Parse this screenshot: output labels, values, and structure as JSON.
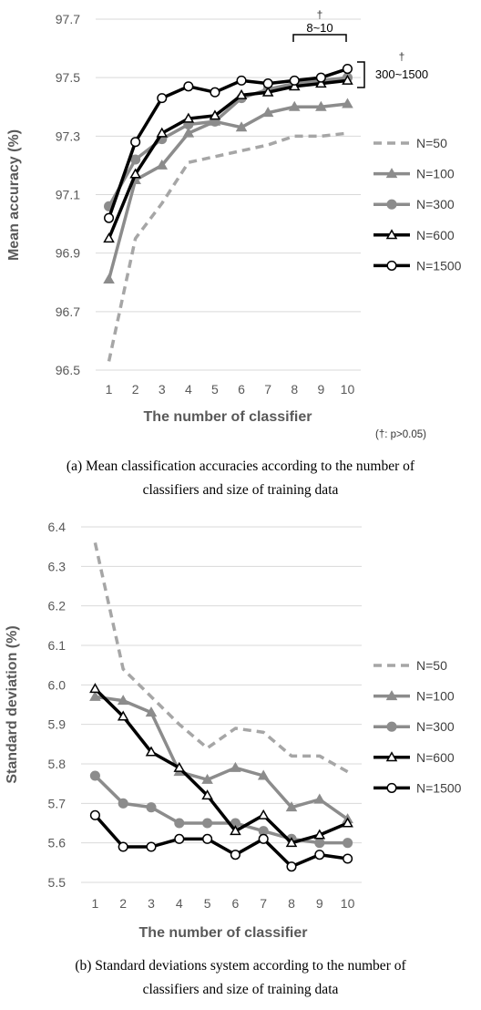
{
  "colors": {
    "N=50": "#a6a6a6",
    "N=100": "#8c8c8c",
    "N=300": "#8c8c8c",
    "N=600": "#000000",
    "N=1500": "#000000",
    "grid": "#d9d9d9",
    "text": "#595959"
  },
  "chart_data": [
    {
      "type": "line",
      "title": "",
      "xlabel": "The number of classifier",
      "ylabel": "Mean accuracy (%)",
      "x": [
        1,
        2,
        3,
        4,
        5,
        6,
        7,
        8,
        9,
        10
      ],
      "ylim": [
        96.5,
        97.7
      ],
      "yticks": [
        "96.5",
        "96.7",
        "96.9",
        "97.1",
        "97.3",
        "97.5",
        "97.7"
      ],
      "grid": "horizontal",
      "legend": "right",
      "series": [
        {
          "name": "N=50",
          "marker": "none",
          "dash": true,
          "values": [
            96.53,
            96.95,
            97.07,
            97.21,
            97.23,
            97.25,
            97.27,
            97.3,
            97.3,
            97.31
          ]
        },
        {
          "name": "N=100",
          "marker": "triangle-filled",
          "values": [
            96.81,
            97.15,
            97.2,
            97.31,
            97.35,
            97.33,
            97.38,
            97.4,
            97.4,
            97.41
          ]
        },
        {
          "name": "N=300",
          "marker": "circle-filled",
          "values": [
            97.06,
            97.22,
            97.29,
            97.34,
            97.35,
            97.43,
            97.46,
            97.48,
            97.49,
            97.5
          ]
        },
        {
          "name": "N=600",
          "marker": "triangle-open",
          "values": [
            96.95,
            97.17,
            97.31,
            97.36,
            97.37,
            97.44,
            97.45,
            97.47,
            97.48,
            97.49
          ]
        },
        {
          "name": "N=1500",
          "marker": "circle-open",
          "values": [
            97.02,
            97.28,
            97.43,
            97.47,
            97.45,
            97.49,
            97.48,
            97.49,
            97.5,
            97.53
          ]
        }
      ],
      "annotations": {
        "bracket_top_dagger": "†",
        "bracket_top_label": "8~10",
        "bracket_right_dagger": "†",
        "bracket_right_label": "300~1500",
        "footnote": "(†: p>0.05)"
      },
      "caption": {
        "line1": "(a) Mean classification accuracies according to the number of",
        "line2": "classifiers and size of training data"
      }
    },
    {
      "type": "line",
      "title": "",
      "xlabel": "The number of classifier",
      "ylabel": "Standard deviation (%)",
      "x": [
        1,
        2,
        3,
        4,
        5,
        6,
        7,
        8,
        9,
        10
      ],
      "ylim": [
        5.5,
        6.4
      ],
      "yticks": [
        "5.5",
        "5.6",
        "5.7",
        "5.8",
        "5.9",
        "6.0",
        "6.1",
        "6.2",
        "6.3",
        "6.4"
      ],
      "grid": "horizontal",
      "legend": "right",
      "series": [
        {
          "name": "N=50",
          "marker": "none",
          "dash": true,
          "values": [
            6.36,
            6.04,
            5.97,
            5.9,
            5.84,
            5.89,
            5.88,
            5.82,
            5.82,
            5.78
          ]
        },
        {
          "name": "N=100",
          "marker": "triangle-filled",
          "values": [
            5.97,
            5.96,
            5.93,
            5.78,
            5.76,
            5.79,
            5.77,
            5.69,
            5.71,
            5.66
          ]
        },
        {
          "name": "N=300",
          "marker": "circle-filled",
          "values": [
            5.77,
            5.7,
            5.69,
            5.65,
            5.65,
            5.65,
            5.63,
            5.61,
            5.6,
            5.6
          ]
        },
        {
          "name": "N=600",
          "marker": "triangle-open",
          "values": [
            5.99,
            5.92,
            5.83,
            5.79,
            5.72,
            5.63,
            5.67,
            5.6,
            5.62,
            5.65
          ]
        },
        {
          "name": "N=1500",
          "marker": "circle-open",
          "values": [
            5.67,
            5.59,
            5.59,
            5.61,
            5.61,
            5.57,
            5.61,
            5.54,
            5.57,
            5.56
          ]
        }
      ],
      "caption": {
        "line1": "(b) Standard deviations system according to the number of",
        "line2": "classifiers and size of training data"
      }
    }
  ]
}
